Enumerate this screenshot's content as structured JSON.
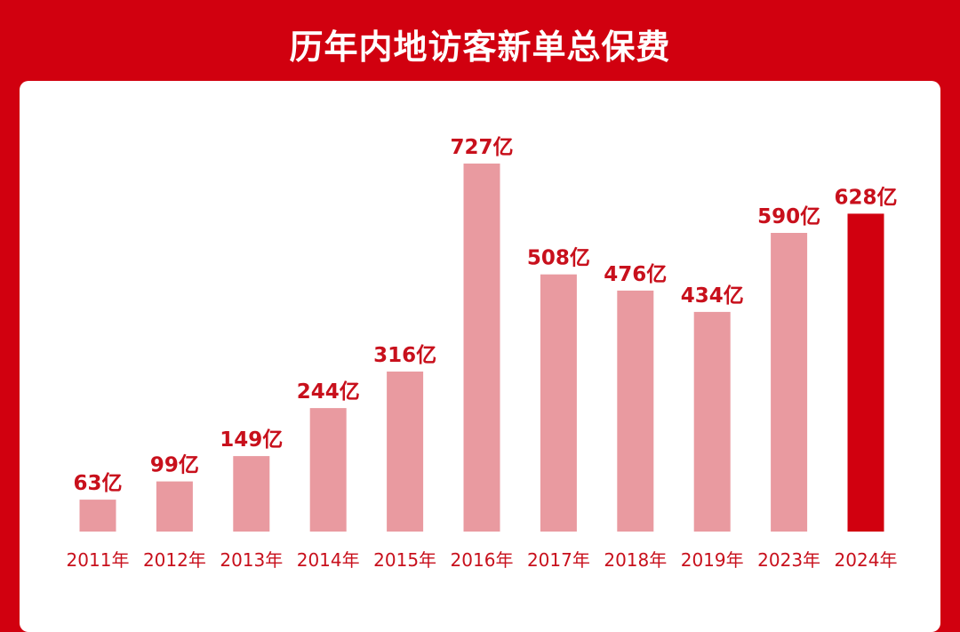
{
  "title": "历年内地访客新单总保费",
  "colors": {
    "background": "#d1000f",
    "panel": "#ffffff",
    "bar": "#e99aa0",
    "bar_highlight": "#d1000f",
    "label": "#c8101c"
  },
  "chart_data": {
    "type": "bar",
    "title": "历年内地访客新单总保费",
    "categories": [
      "2011年",
      "2012年",
      "2013年",
      "2014年",
      "2015年",
      "2016年",
      "2017年",
      "2018年",
      "2019年",
      "2023年",
      "2024年"
    ],
    "values": [
      63,
      99,
      149,
      244,
      316,
      727,
      508,
      476,
      434,
      590,
      628
    ],
    "value_labels": [
      "63亿",
      "99亿",
      "149亿",
      "244亿",
      "316亿",
      "727亿",
      "508亿",
      "476亿",
      "434亿",
      "590亿",
      "628亿"
    ],
    "highlight_category": "2024年",
    "unit": "亿",
    "ylim": [
      0,
      727
    ],
    "grid": false,
    "legend": "none"
  }
}
